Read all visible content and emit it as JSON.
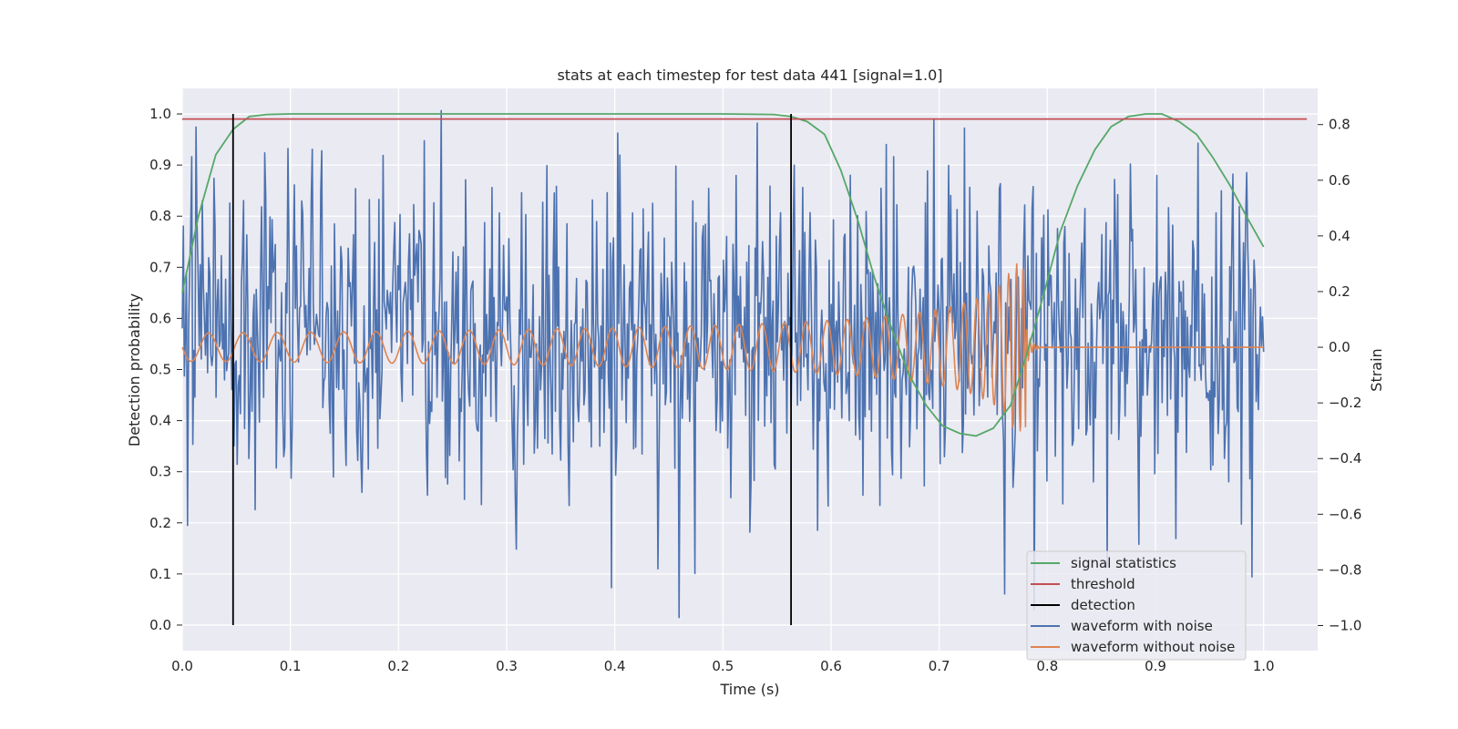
{
  "chart_data": {
    "type": "line",
    "title": "stats at each timestep for test data 441 [signal=1.0]",
    "xlabel": "Time (s)",
    "ylabel": "Detection probability",
    "y2label": "Strain",
    "xlim": [
      0.0,
      1.05
    ],
    "ylim": [
      -0.05,
      1.05
    ],
    "y2lim": [
      -1.09,
      0.93
    ],
    "xticks": [
      "0.0",
      "0.1",
      "0.2",
      "0.3",
      "0.4",
      "0.5",
      "0.6",
      "0.7",
      "0.8",
      "0.9",
      "1.0"
    ],
    "yticks": [
      "0.0",
      "0.1",
      "0.2",
      "0.3",
      "0.4",
      "0.5",
      "0.6",
      "0.7",
      "0.8",
      "0.9",
      "1.0"
    ],
    "y2ticks": [
      "−1.0",
      "−0.8",
      "−0.6",
      "−0.4",
      "−0.2",
      "0.0",
      "0.2",
      "0.4",
      "0.6",
      "0.8"
    ],
    "grid": true,
    "legend_position": "lower-right",
    "colors": {
      "signal": "#55a868",
      "threshold": "#c44e52",
      "detection": "#000000",
      "noisy": "#4c72b0",
      "clean": "#dd8452",
      "background": "#eaeaf2",
      "grid": "#ffffff"
    },
    "series": [
      {
        "name": "signal statistics",
        "axis": "left",
        "x": [
          0.0,
          0.015,
          0.031,
          0.047,
          0.062,
          0.078,
          0.1,
          0.2,
          0.3,
          0.4,
          0.5,
          0.547,
          0.563,
          0.578,
          0.594,
          0.609,
          0.625,
          0.64,
          0.656,
          0.672,
          0.688,
          0.703,
          0.719,
          0.734,
          0.75,
          0.766,
          0.781,
          0.797,
          0.812,
          0.828,
          0.844,
          0.859,
          0.875,
          0.891,
          0.906,
          0.922,
          0.938,
          0.953,
          0.969,
          0.984,
          1.0
        ],
        "y": [
          0.65,
          0.8,
          0.92,
          0.97,
          0.995,
          0.999,
          1.0,
          1.0,
          1.0,
          1.0,
          1.0,
          0.999,
          0.995,
          0.985,
          0.96,
          0.89,
          0.79,
          0.68,
          0.58,
          0.49,
          0.43,
          0.39,
          0.375,
          0.37,
          0.385,
          0.43,
          0.53,
          0.65,
          0.77,
          0.86,
          0.93,
          0.975,
          0.995,
          1.0,
          1.0,
          0.985,
          0.96,
          0.915,
          0.86,
          0.8,
          0.74
        ]
      },
      {
        "name": "threshold",
        "axis": "left",
        "x": [
          0.0,
          1.04
        ],
        "y": [
          0.99,
          0.99
        ]
      },
      {
        "name": "detection",
        "axis": "left",
        "x": [
          0.047,
          0.563
        ],
        "y": [
          [
            0.0,
            1.0
          ],
          [
            0.0,
            1.0
          ]
        ]
      },
      {
        "name": "waveform with noise",
        "axis": "right",
        "x_range": [
          0.0,
          1.0
        ],
        "samples": 1024,
        "y_range": [
          -1.0,
          0.85
        ]
      },
      {
        "name": "waveform without noise",
        "axis": "right",
        "x_range": [
          0.0,
          1.0
        ],
        "amplitude_start": 0.05,
        "amplitude_peak": 0.3,
        "merger_time": 0.78,
        "y_after_merger": 0.0
      }
    ]
  }
}
